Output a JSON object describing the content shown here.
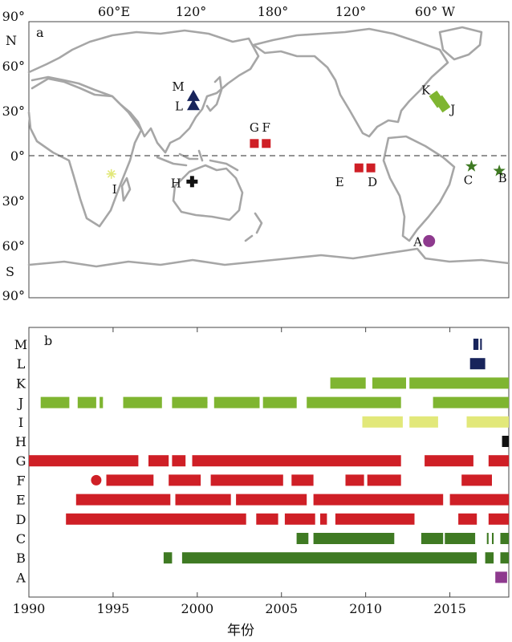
{
  "chart_data": [
    {
      "type": "scatter",
      "panel_label": "a",
      "top_tick_labels": [
        "60°E",
        "120°",
        "180°",
        "120°",
        "60° W"
      ],
      "left_tick_labels": [
        "90°",
        "60°",
        "30°",
        "0°",
        "30°",
        "60°",
        "90°"
      ],
      "hemisphere_labels": [
        "N",
        "S"
      ],
      "colors": {
        "coast": "#a6a6a6",
        "frame": "#444444",
        "equator": "#555555"
      },
      "sites": [
        {
          "id": "A",
          "lon": -62,
          "lat": -56,
          "marker": "circle",
          "color": "#8e3a8e"
        },
        {
          "id": "B",
          "lon": -9,
          "lat": -10,
          "marker": "star",
          "color": "#3f7a23"
        },
        {
          "id": "C",
          "lon": -30,
          "lat": -7,
          "marker": "star",
          "color": "#3f7a23"
        },
        {
          "id": "D",
          "lon": -106,
          "lat": -8,
          "marker": "square",
          "color": "#cf1f26"
        },
        {
          "id": "E",
          "lon": -115,
          "lat": -8,
          "marker": "square",
          "color": "#cf1f26"
        },
        {
          "id": "F",
          "lon": 175,
          "lat": 8,
          "marker": "square",
          "color": "#cf1f26"
        },
        {
          "id": "G",
          "lon": 166,
          "lat": 8,
          "marker": "square",
          "color": "#cf1f26"
        },
        {
          "id": "H",
          "lon": 119,
          "lat": -17,
          "marker": "cross",
          "color": "#111111"
        },
        {
          "id": "I",
          "lon": 58,
          "lat": -12,
          "marker": "asterisk",
          "color": "#e2e87a"
        },
        {
          "id": "J",
          "lon": -52,
          "lat": 34,
          "marker": "diamond",
          "color": "#7fb531"
        },
        {
          "id": "K",
          "lon": -56,
          "lat": 37,
          "marker": "diamond",
          "color": "#7fb531"
        },
        {
          "id": "L",
          "lon": 120,
          "lat": 33,
          "marker": "triangle",
          "color": "#18245b"
        },
        {
          "id": "M",
          "lon": 120,
          "lat": 39,
          "marker": "triangle",
          "color": "#18245b"
        }
      ]
    },
    {
      "type": "bar",
      "panel_label": "b",
      "xlabel": "年份",
      "xlim": [
        1990,
        2018.5
      ],
      "xticks": [
        1990,
        1995,
        2000,
        2005,
        2010,
        2015
      ],
      "categories": [
        "M",
        "L",
        "K",
        "J",
        "I",
        "H",
        "G",
        "F",
        "E",
        "D",
        "C",
        "B",
        "A"
      ],
      "series": [
        {
          "category": "M",
          "color": "#18245b",
          "intervals": [
            [
              2016.4,
              2016.7
            ],
            [
              2016.8,
              2016.9
            ]
          ]
        },
        {
          "category": "L",
          "color": "#18245b",
          "intervals": [
            [
              2016.2,
              2017.1
            ]
          ]
        },
        {
          "category": "K",
          "color": "#7fb531",
          "intervals": [
            [
              2007.9,
              2010.0
            ],
            [
              2010.4,
              2012.4
            ],
            [
              2012.6,
              2018.5
            ]
          ]
        },
        {
          "category": "J",
          "color": "#7fb531",
          "intervals": [
            [
              1990.7,
              1992.4
            ],
            [
              1992.9,
              1994.0
            ],
            [
              1994.2,
              1994.4
            ],
            [
              1995.6,
              1997.9
            ],
            [
              1998.5,
              2000.6
            ],
            [
              2001.0,
              2003.7
            ],
            [
              2003.9,
              2005.9
            ],
            [
              2006.5,
              2012.1
            ],
            [
              2014.0,
              2018.5
            ]
          ]
        },
        {
          "category": "I",
          "color": "#e2e87a",
          "intervals": [
            [
              2009.8,
              2012.2
            ],
            [
              2012.6,
              2014.3
            ],
            [
              2016.0,
              2018.5
            ]
          ]
        },
        {
          "category": "H",
          "color": "#111111",
          "intervals": [
            [
              2018.1,
              2018.5
            ]
          ]
        },
        {
          "category": "G",
          "color": "#cf1f26",
          "intervals": [
            [
              1990.0,
              1996.5
            ],
            [
              1997.1,
              1998.3
            ],
            [
              1998.5,
              1999.3
            ],
            [
              1999.7,
              2012.1
            ],
            [
              2013.5,
              2016.4
            ],
            [
              2017.3,
              2018.5
            ]
          ]
        },
        {
          "category": "F",
          "color": "#cf1f26",
          "intervals": [
            [
              1994.6,
              1997.4
            ],
            [
              1998.3,
              2000.2
            ],
            [
              2000.8,
              2005.1
            ],
            [
              2005.6,
              2006.9
            ],
            [
              2008.8,
              2009.9
            ],
            [
              2010.1,
              2012.1
            ],
            [
              2015.7,
              2017.5
            ]
          ]
        },
        {
          "category": "E",
          "color": "#cf1f26",
          "intervals": [
            [
              1992.8,
              1998.4
            ],
            [
              1998.7,
              2002.0
            ],
            [
              2002.3,
              2006.5
            ],
            [
              2006.9,
              2014.6
            ],
            [
              2015.0,
              2018.5
            ]
          ]
        },
        {
          "category": "D",
          "color": "#cf1f26",
          "intervals": [
            [
              1992.2,
              2002.9
            ],
            [
              2003.5,
              2004.8
            ],
            [
              2005.2,
              2007.0
            ],
            [
              2007.3,
              2007.7
            ],
            [
              2008.2,
              2012.9
            ],
            [
              2015.5,
              2016.6
            ],
            [
              2017.3,
              2018.5
            ]
          ]
        },
        {
          "category": "C",
          "color": "#3f7a23",
          "intervals": [
            [
              2005.9,
              2006.6
            ],
            [
              2006.9,
              2011.7
            ],
            [
              2013.3,
              2014.6
            ],
            [
              2014.7,
              2016.5
            ],
            [
              2017.2,
              2017.3
            ],
            [
              2017.5,
              2017.6
            ],
            [
              2018.0,
              2018.5
            ]
          ]
        },
        {
          "category": "B",
          "color": "#3f7a23",
          "intervals": [
            [
              1998.0,
              1998.5
            ],
            [
              1999.1,
              2016.6
            ],
            [
              2017.1,
              2017.6
            ],
            [
              2018.0,
              2018.5
            ]
          ]
        },
        {
          "category": "A",
          "color": "#8e3a8e",
          "intervals": [
            [
              2017.7,
              2018.4
            ]
          ]
        }
      ],
      "point_markers": [
        {
          "category": "J",
          "year": 2000.3,
          "marker": "circle",
          "color": "#7fb531"
        },
        {
          "category": "F",
          "year": 1994.0,
          "marker": "circle",
          "color": "#cf1f26"
        }
      ]
    }
  ]
}
